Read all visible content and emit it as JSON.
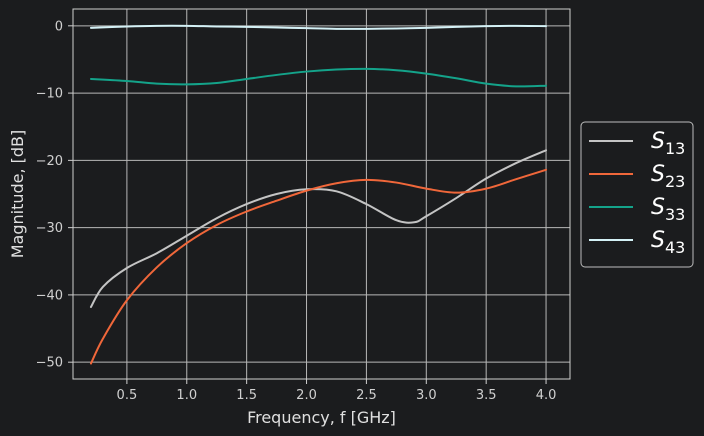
{
  "chart_data": {
    "type": "line",
    "title": "",
    "xlabel": "Frequency, f [GHz]",
    "ylabel": "Magnitude, [dB]",
    "xlim": [
      0.05,
      4.2
    ],
    "ylim": [
      -52.5,
      2.5
    ],
    "xticks": [
      0.5,
      1.0,
      1.5,
      2.0,
      2.5,
      3.0,
      3.5,
      4.0
    ],
    "xtick_labels": [
      "0.5",
      "1.0",
      "1.5",
      "2.0",
      "2.5",
      "3.0",
      "3.5",
      "4.0"
    ],
    "yticks": [
      0,
      -10,
      -20,
      -30,
      -40,
      -50
    ],
    "ytick_labels": [
      "0",
      "−10",
      "−20",
      "−30",
      "−40",
      "−50"
    ],
    "grid": true,
    "legend_position": "right, outside plot",
    "series": [
      {
        "name": "S",
        "name_sub": "13",
        "color": "#c4c4c4",
        "x": [
          0.2,
          0.3,
          0.5,
          0.75,
          1.0,
          1.25,
          1.5,
          1.75,
          2.0,
          2.25,
          2.5,
          2.75,
          2.9,
          3.0,
          3.25,
          3.5,
          3.75,
          4.0
        ],
        "y": [
          -41.8,
          -38.8,
          -36.0,
          -33.8,
          -31.2,
          -28.6,
          -26.5,
          -25.0,
          -24.3,
          -24.6,
          -26.5,
          -28.9,
          -29.2,
          -28.3,
          -25.6,
          -22.7,
          -20.4,
          -18.5
        ]
      },
      {
        "name": "S",
        "name_sub": "23",
        "color": "#f0673a",
        "x": [
          0.2,
          0.3,
          0.5,
          0.75,
          1.0,
          1.25,
          1.5,
          1.75,
          2.0,
          2.25,
          2.5,
          2.75,
          3.0,
          3.25,
          3.5,
          3.75,
          4.0
        ],
        "y": [
          -50.2,
          -46.5,
          -40.8,
          -35.9,
          -32.3,
          -29.6,
          -27.6,
          -26.0,
          -24.5,
          -23.4,
          -22.9,
          -23.3,
          -24.2,
          -24.8,
          -24.2,
          -22.8,
          -21.4
        ]
      },
      {
        "name": "S",
        "name_sub": "33",
        "color": "#14a38a",
        "x": [
          0.2,
          0.5,
          0.75,
          1.0,
          1.25,
          1.5,
          1.75,
          2.0,
          2.25,
          2.5,
          2.75,
          3.0,
          3.25,
          3.5,
          3.75,
          4.0
        ],
        "y": [
          -7.9,
          -8.2,
          -8.6,
          -8.7,
          -8.5,
          -7.9,
          -7.3,
          -6.8,
          -6.5,
          -6.4,
          -6.6,
          -7.1,
          -7.8,
          -8.6,
          -9.0,
          -8.9
        ]
      },
      {
        "name": "S",
        "name_sub": "43",
        "color": "#d4f1f6",
        "x": [
          0.2,
          0.5,
          0.75,
          1.0,
          1.25,
          1.5,
          1.75,
          2.0,
          2.25,
          2.5,
          2.75,
          3.0,
          3.25,
          3.5,
          3.75,
          4.0
        ],
        "y": [
          -0.3,
          -0.1,
          0.0,
          0.0,
          -0.1,
          -0.15,
          -0.25,
          -0.35,
          -0.45,
          -0.45,
          -0.4,
          -0.3,
          -0.15,
          -0.05,
          0.0,
          -0.05
        ]
      }
    ]
  },
  "colors": {
    "background": "#1b1c1e",
    "grid": "#b8b8b8",
    "legend_border": "#bdbdbd"
  }
}
